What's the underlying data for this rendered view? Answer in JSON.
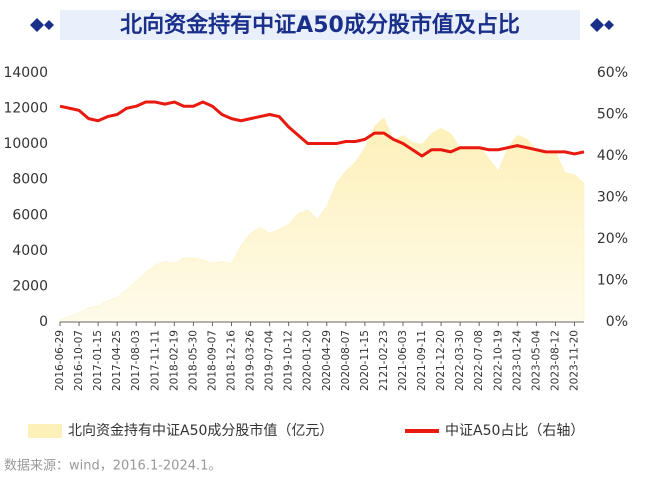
{
  "chart_data": {
    "type": "area-line",
    "title": "北向资金持有中证A50成分股市值及占比",
    "source": "数据来源：wind，2016.1-2024.1。",
    "categories": [
      "2016-06-29",
      null,
      "2016-10-07",
      null,
      "2017-01-15",
      null,
      "2017-04-25",
      null,
      "2017-08-03",
      null,
      "2017-11-11",
      null,
      "2018-02-19",
      null,
      "2018-05-30",
      null,
      "2018-09-07",
      null,
      "2018-12-16",
      null,
      "2019-03-26",
      null,
      "2019-07-04",
      null,
      "2019-10-12",
      null,
      "2020-01-20",
      null,
      "2020-04-29",
      null,
      "2020-08-07",
      null,
      "2020-11-15",
      null,
      "2121-02-23",
      null,
      "2021-06-03",
      null,
      "2021-09-11",
      null,
      "2021-12-20",
      null,
      "2022-03-30",
      null,
      "2022-07-08",
      null,
      "2022-10-19",
      null,
      "2023-01-24",
      null,
      "2023-05-04",
      null,
      "2023-08-12",
      null,
      "2023-11-20",
      null
    ],
    "series": [
      {
        "name": "北向资金持有中证A50成分股市值（亿元）",
        "color": "#fdf0b8",
        "kind": "area",
        "values": [
          100,
          300,
          500,
          800,
          900,
          1200,
          1400,
          1800,
          2300,
          2800,
          3200,
          3400,
          3300,
          3600,
          3600,
          3500,
          3300,
          3400,
          3300,
          4300,
          5000,
          5300,
          5000,
          5200,
          5500,
          6100,
          6300,
          5800,
          6500,
          7800,
          8500,
          9000,
          9800,
          11000,
          11500,
          10200,
          10500,
          10100,
          10000,
          10600,
          10900,
          10600,
          9800,
          9700,
          9900,
          9200,
          8500,
          9800,
          10500,
          10300,
          9700,
          9600,
          9600,
          8400,
          8300,
          7800
        ]
      },
      {
        "name": "中证A50占比（右轴）",
        "color": "#e8190e",
        "kind": "line",
        "axis": "y2",
        "values": [
          52,
          51.5,
          51,
          49,
          48.5,
          49.5,
          50,
          51.5,
          52,
          53,
          53,
          52.5,
          53,
          52,
          52,
          53,
          52,
          50,
          49,
          48.5,
          49,
          49.5,
          50,
          49.5,
          47,
          45,
          43,
          43,
          43,
          43,
          43.5,
          43.5,
          44,
          45.5,
          45.5,
          44,
          43,
          41.5,
          40,
          41.5,
          41.5,
          41,
          42,
          42,
          42,
          41.5,
          41.5,
          42,
          42.5,
          42,
          41.5,
          41,
          41,
          41,
          40.5,
          41
        ]
      }
    ],
    "ylim": [
      0,
      14000
    ],
    "yticks": [
      0,
      2000,
      4000,
      6000,
      8000,
      10000,
      12000,
      14000
    ],
    "y2lim": [
      0,
      60
    ],
    "y2ticks": [
      {
        "value": 0,
        "label": "0%"
      },
      {
        "value": 10,
        "label": "10%"
      },
      {
        "value": 20,
        "label": "20%"
      },
      {
        "value": 30,
        "label": "30%"
      },
      {
        "value": 40,
        "label": "40%"
      },
      {
        "value": 50,
        "label": "50%"
      },
      {
        "value": 60,
        "label": "60%"
      }
    ]
  }
}
